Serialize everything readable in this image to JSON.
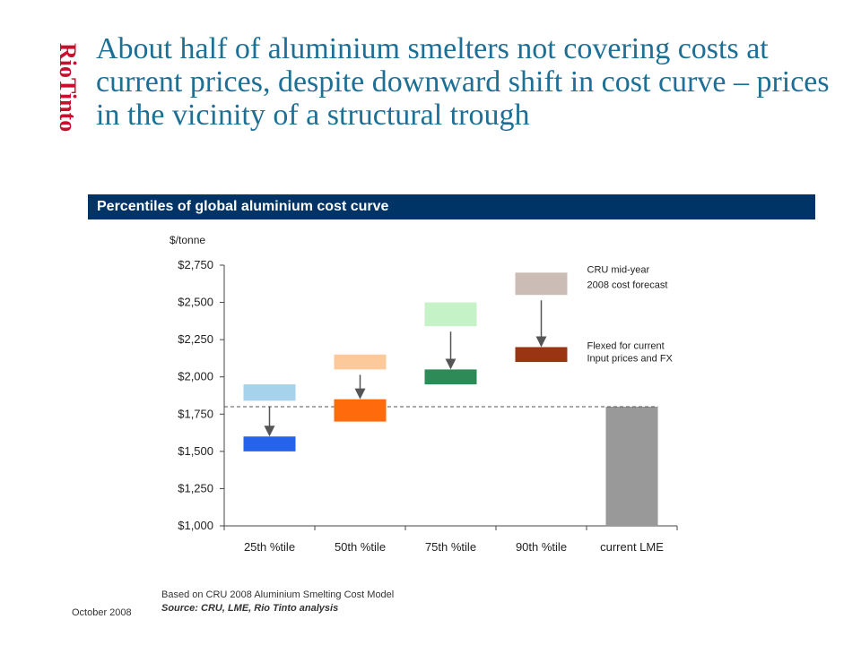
{
  "logo": {
    "text": "RioTinto",
    "color": "#c8102e"
  },
  "headline": "About half of aluminium smelters not covering costs at current prices, despite downward shift in cost curve – prices in the vicinity of a structural trough",
  "section_title": "Percentiles of global aluminium cost curve",
  "chart_data": {
    "type": "bar",
    "title": "Percentiles of global aluminium cost curve",
    "ylabel": "$/tonne",
    "xlabel": "",
    "ylim": [
      1000,
      2750
    ],
    "yticks": [
      1000,
      1250,
      1500,
      1750,
      2000,
      2250,
      2500,
      2750
    ],
    "ytick_labels": [
      "$1,000",
      "$1,250",
      "$1,500",
      "$1,750",
      "$2,000",
      "$2,250",
      "$2,500",
      "$2,750"
    ],
    "categories": [
      "25th %tile",
      "50th %tile",
      "75th %tile",
      "90th %tile",
      "current LME"
    ],
    "series": [
      {
        "name": "CRU mid-year 2008 cost forecast",
        "ranges": [
          [
            1840,
            1950
          ],
          [
            2050,
            2150
          ],
          [
            2340,
            2500
          ],
          [
            2550,
            2700
          ],
          null
        ],
        "colors": [
          "#a6d2ec",
          "#fbc99a",
          "#c6f2c8",
          "#cbbdb6",
          null
        ]
      },
      {
        "name": "Flexed for current Input prices and FX",
        "ranges": [
          [
            1500,
            1600
          ],
          [
            1700,
            1850
          ],
          [
            1950,
            2050
          ],
          [
            2100,
            2200
          ],
          null
        ],
        "colors": [
          "#2563eb",
          "#ff6a0d",
          "#2e8b57",
          "#9a3412",
          null
        ]
      }
    ],
    "current_lme": {
      "value": 1800,
      "color": "#999999"
    },
    "reference_line": 1800,
    "legend": {
      "forecast_lines": [
        "CRU mid-year",
        "2008 cost forecast"
      ],
      "flexed_lines": [
        "Flexed for current",
        "Input prices and FX"
      ]
    },
    "grid": false
  },
  "footnote": {
    "line1": "Based on CRU 2008 Aluminium Smelting Cost Model",
    "line2": "Source: CRU, LME, Rio Tinto analysis"
  },
  "date": "October 2008"
}
